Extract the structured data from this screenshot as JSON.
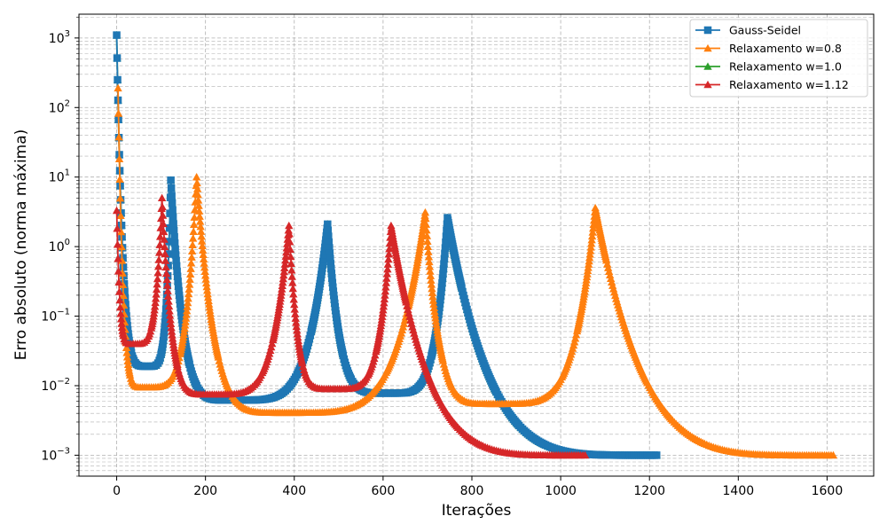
{
  "chart_data": {
    "type": "line",
    "xlabel": "Iterações",
    "ylabel": "Erro absoluto (norma máxima)",
    "yscale": "log",
    "xlim": [
      -85,
      1705
    ],
    "ylim": [
      0.0005,
      2200
    ],
    "grid": true,
    "grid_which": "both",
    "legend_position": "top-right",
    "x_ticks": [
      0,
      200,
      400,
      600,
      800,
      1000,
      1200,
      1400,
      1600
    ],
    "x_tick_labels": [
      "0",
      "200",
      "400",
      "600",
      "800",
      "1000",
      "1200",
      "1400",
      "1600"
    ],
    "y_ticks": [
      0.001,
      0.01,
      0.1,
      1,
      10,
      100,
      1000
    ],
    "y_tick_labels": [
      {
        "base": "10",
        "exp": "−3"
      },
      {
        "base": "10",
        "exp": "−2"
      },
      {
        "base": "10",
        "exp": "−1"
      },
      {
        "base": "10",
        "exp": "0"
      },
      {
        "base": "10",
        "exp": "1"
      },
      {
        "base": "10",
        "exp": "2"
      },
      {
        "base": "10",
        "exp": "3"
      }
    ],
    "series": [
      {
        "name": "Gauss-Seidel",
        "color": "#1f77b4",
        "marker": "square",
        "end_x": 1218,
        "peaks": [
          {
            "x": 0,
            "y": 1100
          },
          {
            "x": 122,
            "y": 9
          },
          {
            "x": 475,
            "y": 2.1
          },
          {
            "x": 745,
            "y": 2.6
          }
        ],
        "valleys": [
          {
            "x": 70,
            "y": 0.019
          },
          {
            "x": 260,
            "y": 0.0062
          },
          {
            "x": 610,
            "y": 0.0078
          }
        ],
        "end_y": 0.001
      },
      {
        "name": "Relaxamento w=0.8",
        "color": "#ff7f0e",
        "marker": "triangle",
        "end_x": 1615,
        "peaks": [
          {
            "x": 3,
            "y": 190
          },
          {
            "x": 180,
            "y": 10
          },
          {
            "x": 695,
            "y": 3.1
          },
          {
            "x": 1078,
            "y": 3.6
          }
        ],
        "valleys": [
          {
            "x": 60,
            "y": 0.0095
          },
          {
            "x": 375,
            "y": 0.0041
          },
          {
            "x": 850,
            "y": 0.0055
          }
        ],
        "end_y": 0.001
      },
      {
        "name": "Relaxamento w=1.0",
        "color": "#2ca02c",
        "marker": "triangle",
        "end_x": 1218,
        "peaks": [
          {
            "x": 0,
            "y": 1100
          },
          {
            "x": 122,
            "y": 9
          },
          {
            "x": 475,
            "y": 2.1
          },
          {
            "x": 745,
            "y": 2.6
          }
        ],
        "valleys": [
          {
            "x": 70,
            "y": 0.019
          },
          {
            "x": 260,
            "y": 0.0062
          },
          {
            "x": 610,
            "y": 0.0078
          }
        ],
        "end_y": 0.001
      },
      {
        "name": "Relaxamento w=1.12",
        "color": "#d62728",
        "marker": "triangle",
        "end_x": 1055,
        "peaks": [
          {
            "x": 0,
            "y": 3.3
          },
          {
            "x": 102,
            "y": 5
          },
          {
            "x": 388,
            "y": 2.0
          },
          {
            "x": 618,
            "y": 2.0
          }
        ],
        "valleys": [
          {
            "x": 35,
            "y": 0.04
          },
          {
            "x": 210,
            "y": 0.0075
          },
          {
            "x": 485,
            "y": 0.009
          }
        ],
        "end_y": 0.001
      }
    ],
    "draw_order": [
      2,
      0,
      1,
      3
    ]
  }
}
